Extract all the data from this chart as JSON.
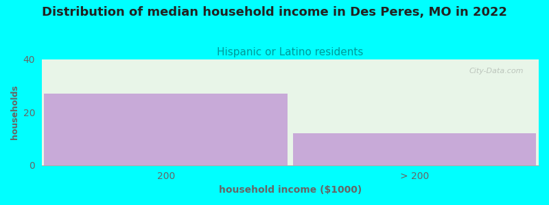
{
  "title": "Distribution of median household income in Des Peres, MO in 2022",
  "subtitle": "Hispanic or Latino residents",
  "xlabel": "household income ($1000)",
  "ylabel": "households",
  "categories": [
    "200",
    "> 200"
  ],
  "values": [
    27,
    12
  ],
  "bar_color": "#c8aad8",
  "plot_bg_color": "#e8f5e8",
  "fig_bg_color": "#00ffff",
  "ylim": [
    0,
    40
  ],
  "yticks": [
    0,
    20,
    40
  ],
  "title_fontsize": 13,
  "subtitle_fontsize": 11,
  "subtitle_color": "#009999",
  "axis_label_color": "#666666",
  "tick_color": "#666666",
  "watermark": "City-Data.com"
}
